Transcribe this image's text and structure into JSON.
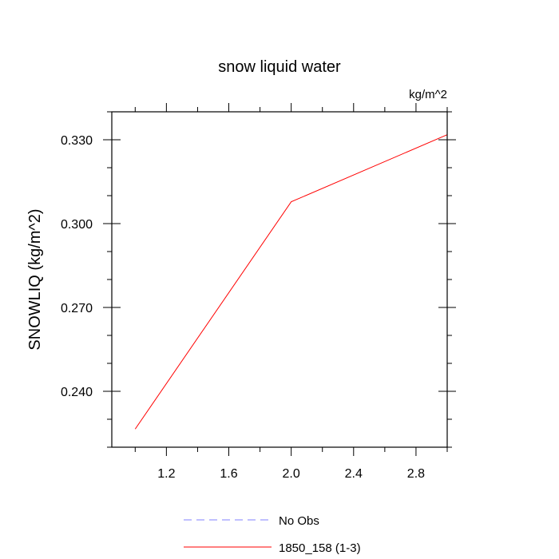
{
  "chart_data": {
    "type": "line",
    "title": "snow liquid water",
    "units": "kg/m^2",
    "ylabel": "SNOWLIQ  (kg/m^2)",
    "xlabel": "",
    "xlim": [
      0.85,
      3.0
    ],
    "ylim": [
      0.22,
      0.34
    ],
    "xticks": [
      1.2,
      1.6,
      2.0,
      2.4,
      2.8
    ],
    "xtick_labels": [
      "1.2",
      "1.6",
      "2.0",
      "2.4",
      "2.8"
    ],
    "yticks": [
      0.24,
      0.27,
      0.3,
      0.33
    ],
    "ytick_labels": [
      "0.240",
      "0.270",
      "0.300",
      "0.330"
    ],
    "x_minor_step": 0.2,
    "y_minor_step": 0.01,
    "series": [
      {
        "name": "No Obs",
        "color": "#8080ff",
        "dash": "dashed",
        "x": [],
        "y": []
      },
      {
        "name": "1850_158 (1-3)",
        "color": "#ff0000",
        "dash": "solid",
        "x": [
          1.0,
          2.0,
          3.0
        ],
        "y": [
          0.2265,
          0.3078,
          0.3318
        ]
      }
    ],
    "legend_position": "bottom"
  }
}
